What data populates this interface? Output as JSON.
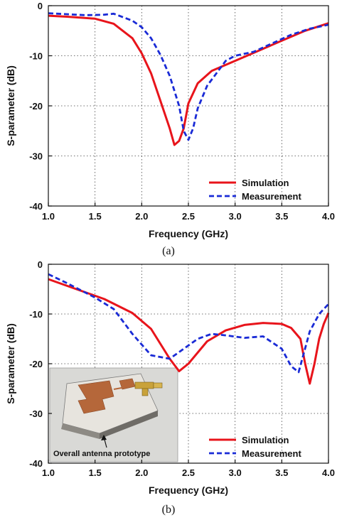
{
  "chart_data": [
    {
      "type": "line",
      "panel_label": "(a)",
      "xlabel": "Frequency (GHz)",
      "ylabel": "S-parameter (dB)",
      "xlim": [
        1.0,
        4.0
      ],
      "ylim": [
        -40,
        0
      ],
      "xticks": [
        "1.0",
        "1.5",
        "2.0",
        "2.5",
        "3.0",
        "3.5",
        "4.0"
      ],
      "yticks": [
        "0",
        "-10",
        "-20",
        "-30",
        "-40"
      ],
      "legend_position": "bottom-right",
      "series": [
        {
          "name": "Simulation",
          "color": "#e8141b",
          "dash": "solid",
          "x": [
            1.0,
            1.2,
            1.5,
            1.7,
            1.9,
            2.0,
            2.1,
            2.2,
            2.3,
            2.35,
            2.4,
            2.45,
            2.5,
            2.6,
            2.75,
            3.0,
            3.25,
            3.5,
            3.75,
            4.0
          ],
          "y": [
            -2.0,
            -2.2,
            -2.6,
            -3.6,
            -6.5,
            -9.5,
            -13.5,
            -19.0,
            -24.5,
            -27.8,
            -27.0,
            -24.5,
            -19.5,
            -15.5,
            -13.0,
            -11.0,
            -9.0,
            -7.0,
            -5.0,
            -3.5
          ]
        },
        {
          "name": "Measurement",
          "color": "#1a2bd6",
          "dash": "dashed",
          "x": [
            1.0,
            1.2,
            1.4,
            1.6,
            1.7,
            1.8,
            1.9,
            2.0,
            2.1,
            2.2,
            2.3,
            2.4,
            2.45,
            2.5,
            2.55,
            2.6,
            2.7,
            2.8,
            2.9,
            3.0,
            3.2,
            3.4,
            3.6,
            3.8,
            4.0
          ],
          "y": [
            -1.5,
            -1.7,
            -1.9,
            -1.8,
            -1.6,
            -2.3,
            -3.0,
            -4.3,
            -6.5,
            -9.8,
            -14.0,
            -20.0,
            -25.0,
            -26.8,
            -24.5,
            -20.5,
            -16.0,
            -13.5,
            -11.0,
            -10.0,
            -9.2,
            -7.5,
            -5.8,
            -4.6,
            -3.8
          ]
        }
      ]
    },
    {
      "type": "line",
      "panel_label": "(b)",
      "xlabel": "Frequency (GHz)",
      "ylabel": "S-parameter (dB)",
      "xlim": [
        1.0,
        4.0
      ],
      "ylim": [
        -40,
        0
      ],
      "xticks": [
        "1.0",
        "1.5",
        "2.0",
        "2.5",
        "3.0",
        "3.5",
        "4.0"
      ],
      "yticks": [
        "0",
        "-10",
        "-20",
        "-30",
        "-40"
      ],
      "legend_position": "bottom-right",
      "inset_caption": "Overall antenna prototype",
      "series": [
        {
          "name": "Simulation",
          "color": "#e8141b",
          "dash": "solid",
          "x": [
            1.0,
            1.3,
            1.6,
            1.9,
            2.1,
            2.3,
            2.4,
            2.5,
            2.7,
            2.9,
            3.1,
            3.3,
            3.5,
            3.6,
            3.7,
            3.75,
            3.8,
            3.85,
            3.9,
            3.95,
            4.0
          ],
          "y": [
            -3.0,
            -5.0,
            -7.0,
            -9.8,
            -13.0,
            -19.0,
            -21.5,
            -20.0,
            -15.5,
            -13.3,
            -12.2,
            -11.8,
            -12.0,
            -12.8,
            -15.0,
            -20.0,
            -24.0,
            -20.0,
            -15.0,
            -12.0,
            -9.8
          ]
        },
        {
          "name": "Measurement",
          "color": "#1a2bd6",
          "dash": "dashed",
          "x": [
            1.0,
            1.2,
            1.5,
            1.7,
            1.9,
            2.1,
            2.3,
            2.45,
            2.6,
            2.75,
            2.9,
            3.1,
            3.3,
            3.5,
            3.6,
            3.68,
            3.72,
            3.8,
            3.9,
            4.0
          ],
          "y": [
            -2.0,
            -3.8,
            -6.7,
            -9.0,
            -14.0,
            -18.3,
            -19.0,
            -17.0,
            -15.0,
            -14.0,
            -14.3,
            -14.8,
            -14.5,
            -17.0,
            -20.5,
            -21.7,
            -19.0,
            -13.5,
            -10.0,
            -8.0
          ]
        }
      ]
    }
  ]
}
